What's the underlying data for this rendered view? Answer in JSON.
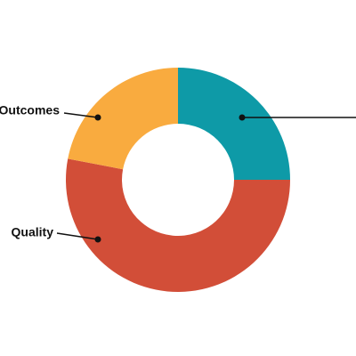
{
  "chart_data": {
    "type": "pie",
    "donut": true,
    "categories": [
      null,
      "Quality",
      "Outcomes"
    ],
    "values": [
      25,
      53,
      22
    ],
    "colors": [
      "#0e9aa7",
      "#d24e38",
      "#f9ab3f"
    ]
  }
}
